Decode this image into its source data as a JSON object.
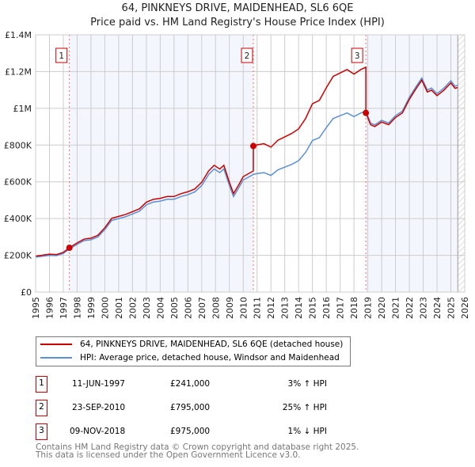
{
  "chart_data": {
    "type": "line",
    "title": "64, PINKNEYS DRIVE, MAIDENHEAD, SL6 6QE",
    "subtitle": "Price paid vs. HM Land Registry's House Price Index (HPI)",
    "ylim": [
      0,
      1400000
    ],
    "xlim": [
      1995,
      2026
    ],
    "yticks": [
      {
        "v": 0,
        "label": "£0"
      },
      {
        "v": 200000,
        "label": "£200K"
      },
      {
        "v": 400000,
        "label": "£400K"
      },
      {
        "v": 600000,
        "label": "£600K"
      },
      {
        "v": 800000,
        "label": "£800K"
      },
      {
        "v": 1000000,
        "label": "£1M"
      },
      {
        "v": 1200000,
        "label": "£1.2M"
      },
      {
        "v": 1400000,
        "label": "£1.4M"
      }
    ],
    "xticks": [
      1995,
      1996,
      1997,
      1998,
      1999,
      2000,
      2001,
      2002,
      2003,
      2004,
      2005,
      2006,
      2007,
      2008,
      2009,
      2010,
      2011,
      2012,
      2013,
      2014,
      2015,
      2016,
      2017,
      2018,
      2019,
      2020,
      2021,
      2022,
      2023,
      2024,
      2025,
      2026
    ],
    "grid": true,
    "hatch_from": 2025.5,
    "series": [
      {
        "name": "64, PINKNEYS DRIVE, MAIDENHEAD, SL6 6QE (detached house)",
        "color": "#cc0000",
        "derived_from_hpi_and_sales": true
      },
      {
        "name": "HPI: Average price, detached house, Windsor and Maidenhead",
        "color": "#5b8fd6",
        "x": [
          1995,
          1995.5,
          1996,
          1996.5,
          1997,
          1997.44,
          1998,
          1998.5,
          1999,
          1999.5,
          2000,
          2000.5,
          2001,
          2001.5,
          2002,
          2002.5,
          2003,
          2003.5,
          2004,
          2004.5,
          2005,
          2005.5,
          2006,
          2006.5,
          2007,
          2007.5,
          2007.9,
          2008.3,
          2008.6,
          2009,
          2009.3,
          2009.7,
          2010,
          2010.73,
          2011,
          2011.5,
          2012,
          2012.5,
          2013,
          2013.5,
          2014,
          2014.5,
          2015,
          2015.5,
          2016,
          2016.5,
          2017,
          2017.5,
          2018,
          2018.5,
          2018.86,
          2019.2,
          2019.5,
          2020,
          2020.5,
          2021,
          2021.5,
          2022,
          2022.5,
          2022.9,
          2023.3,
          2023.6,
          2024,
          2024.5,
          2025,
          2025.3,
          2025.5
        ],
        "y": [
          190000,
          195000,
          200000,
          198000,
          210000,
          234000,
          260000,
          280000,
          285000,
          300000,
          340000,
          390000,
          400000,
          410000,
          425000,
          440000,
          475000,
          490000,
          495000,
          505000,
          505000,
          520000,
          530000,
          545000,
          580000,
          640000,
          670000,
          650000,
          670000,
          580000,
          520000,
          570000,
          610000,
          640000,
          645000,
          650000,
          635000,
          665000,
          680000,
          695000,
          715000,
          760000,
          825000,
          840000,
          895000,
          945000,
          960000,
          975000,
          955000,
          975000,
          985000,
          920000,
          910000,
          935000,
          920000,
          960000,
          985000,
          1060000,
          1120000,
          1165000,
          1100000,
          1110000,
          1080000,
          1110000,
          1150000,
          1120000,
          1125000
        ]
      }
    ],
    "sales": [
      {
        "n": "1",
        "x": 1997.44,
        "date": "11-JUN-1997",
        "price": 241000,
        "price_label": "£241,000",
        "hpi": "3% ↑ HPI"
      },
      {
        "n": "2",
        "x": 2010.73,
        "date": "23-SEP-2010",
        "price": 795000,
        "price_label": "£795,000",
        "hpi": "25% ↑ HPI"
      },
      {
        "n": "3",
        "x": 2018.86,
        "date": "09-NOV-2018",
        "price": 975000,
        "price_label": "£975,000",
        "hpi": "1% ↓ HPI"
      }
    ]
  },
  "legend": {
    "red": "64, PINKNEYS DRIVE, MAIDENHEAD, SL6 6QE (detached house)",
    "blue": "HPI: Average price, detached house, Windsor and Maidenhead"
  },
  "footer": {
    "line1": "Contains HM Land Registry data © Crown copyright and database right 2025.",
    "line2": "This data is licensed under the Open Government Licence v3.0."
  }
}
